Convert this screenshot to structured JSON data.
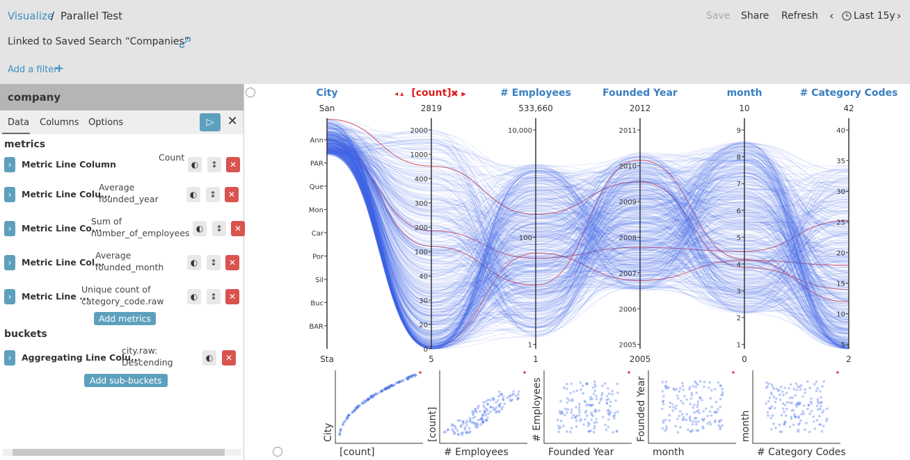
{
  "breadcrumb": {
    "link": "Visualize",
    "sep": "/",
    "current": "Parallel Test"
  },
  "top_menu": [
    "Save",
    "Share",
    "Refresh"
  ],
  "time": "Last 15y",
  "linked": "Linked to Saved Search “Companies”",
  "add_filter": "Add a filter",
  "sidebar": {
    "index": "company",
    "tabs": [
      "Data",
      "Columns",
      "Options"
    ],
    "metrics_title": "metrics",
    "metrics": [
      {
        "name": "Metric Line Column",
        "desc": "Count"
      },
      {
        "name": "Metric Line Colu...",
        "desc": "Average founded_year"
      },
      {
        "name": "Metric Line Co...",
        "desc": "Sum of number_of_employees"
      },
      {
        "name": "Metric Line Col...",
        "desc": "Average founded_month"
      },
      {
        "name": "Metric Line ...",
        "desc": "Unique count of category_code.raw"
      }
    ],
    "add_metrics": "Add metrics",
    "buckets_title": "buckets",
    "buckets": [
      {
        "name": "Aggregating Line Colu...",
        "desc": "city.raw: Descending"
      }
    ],
    "add_buckets": "Add sub-buckets"
  },
  "parallel": {
    "axes": [
      {
        "title": "City",
        "top": "San",
        "bottom": "Sta",
        "ticks": [
          "Ann",
          "PAR",
          "Que",
          "Mon",
          "Car",
          "Por",
          "Sil",
          "Buc",
          "BAR"
        ]
      },
      {
        "title": "[count]",
        "top": "2819",
        "bottom": "5",
        "ticks": [
          "2000",
          "1000",
          "400",
          "300",
          "200",
          "100",
          "40",
          "30",
          "20",
          "0"
        ]
      },
      {
        "title": "# Employees",
        "top": "533,660",
        "bottom": "1",
        "ticks": [
          "10,000",
          "100",
          "1"
        ]
      },
      {
        "title": "Founded Year",
        "top": "2012",
        "bottom": "2005",
        "ticks": [
          "2011",
          "2010",
          "2009",
          "2008",
          "2007",
          "2006",
          "2005"
        ]
      },
      {
        "title": "month",
        "top": "10",
        "bottom": "0",
        "ticks": [
          "9",
          "8",
          "7",
          "6",
          "5",
          "4",
          "3",
          "2",
          "1"
        ]
      },
      {
        "title": "# Category Codes",
        "top": "42",
        "bottom": "2",
        "ticks": [
          "40",
          "35",
          "30",
          "25",
          "20",
          "15",
          "10",
          "5"
        ]
      }
    ]
  },
  "scatter": [
    {
      "x": "[count]",
      "y": "City"
    },
    {
      "x": "# Employees",
      "y": "[count]"
    },
    {
      "x": "Founded Year",
      "y": "# Employees"
    },
    {
      "x": "month",
      "y": "Founded Year"
    },
    {
      "x": "# Category Codes",
      "y": "month"
    }
  ]
}
